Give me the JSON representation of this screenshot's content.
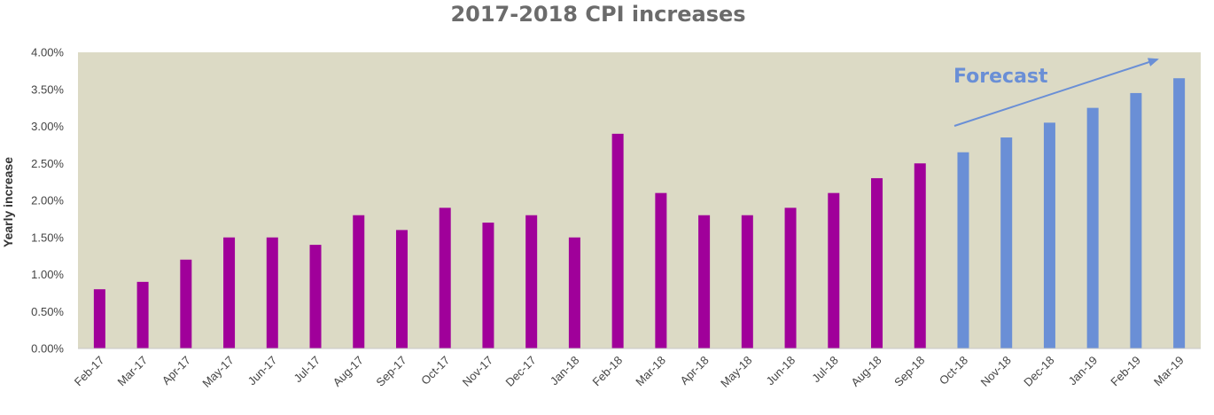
{
  "chart_data": {
    "type": "bar",
    "title": "2017-2018 CPI increases",
    "xlabel": "",
    "ylabel": "Yearly increase",
    "ylim": [
      0,
      0.04
    ],
    "yticks": [
      "0.00%",
      "0.50%",
      "1.00%",
      "1.50%",
      "2.00%",
      "2.50%",
      "3.00%",
      "3.50%",
      "4.00%"
    ],
    "categories": [
      "Feb-17",
      "Mar-17",
      "Apr-17",
      "May-17",
      "Jun-17",
      "Jul-17",
      "Aug-17",
      "Sep-17",
      "Oct-17",
      "Nov-17",
      "Dec-17",
      "Jan-18",
      "Feb-18",
      "Mar-18",
      "Apr-18",
      "May-18",
      "Jun-18",
      "Jul-18",
      "Aug-18",
      "Sep-18",
      "Oct-18",
      "Nov-18",
      "Dec-18",
      "Jan-19",
      "Feb-19",
      "Mar-19"
    ],
    "values": [
      0.008,
      0.009,
      0.012,
      0.015,
      0.015,
      0.014,
      0.018,
      0.016,
      0.019,
      0.017,
      0.018,
      0.015,
      0.029,
      0.021,
      0.018,
      0.018,
      0.019,
      0.021,
      0.023,
      0.025,
      0.0265,
      0.0285,
      0.0305,
      0.0325,
      0.0345,
      0.0365
    ],
    "actual_count": 20,
    "colors": {
      "actual": "#a0009a",
      "forecast": "#6a8fd6",
      "plot_background": "#dcdac5",
      "title": "#6b6b6b",
      "annotation": "#6a8fd6"
    },
    "grid": false,
    "legend": "none",
    "annotations": [
      {
        "text": "Forecast",
        "arrow": true
      }
    ]
  }
}
